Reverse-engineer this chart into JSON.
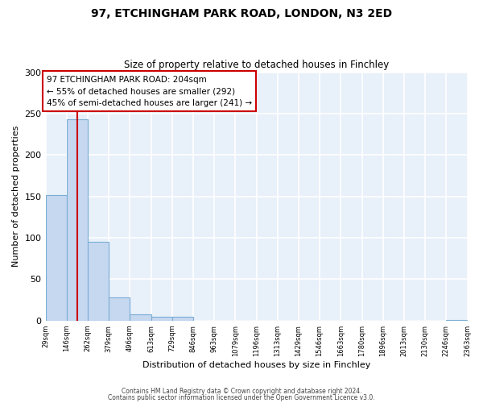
{
  "title": "97, ETCHINGHAM PARK ROAD, LONDON, N3 2ED",
  "subtitle": "Size of property relative to detached houses in Finchley",
  "xlabel": "Distribution of detached houses by size in Finchley",
  "ylabel": "Number of detached properties",
  "bin_edges": [
    29,
    146,
    262,
    379,
    496,
    613,
    729,
    846,
    963,
    1079,
    1196,
    1313,
    1429,
    1546,
    1663,
    1780,
    1896,
    2013,
    2130,
    2246,
    2363
  ],
  "bar_heights": [
    152,
    243,
    95,
    28,
    8,
    5,
    5,
    0,
    0,
    0,
    0,
    0,
    0,
    0,
    0,
    0,
    0,
    0,
    0,
    1
  ],
  "bar_color": "#c5d8f0",
  "bar_edge_color": "#7aadd4",
  "figure_bg_color": "#ffffff",
  "axes_bg_color": "#e8f0fa",
  "grid_color": "#ffffff",
  "property_size": 204,
  "red_line_color": "#cc0000",
  "annotation_title": "97 ETCHINGHAM PARK ROAD: 204sqm",
  "annotation_line1": "← 55% of detached houses are smaller (292)",
  "annotation_line2": "45% of semi-detached houses are larger (241) →",
  "annotation_box_facecolor": "#ffffff",
  "annotation_border_color": "#cc0000",
  "ylim": [
    0,
    300
  ],
  "yticks": [
    0,
    50,
    100,
    150,
    200,
    250,
    300
  ],
  "footer_line1": "Contains HM Land Registry data © Crown copyright and database right 2024.",
  "footer_line2": "Contains public sector information licensed under the Open Government Licence v3.0."
}
